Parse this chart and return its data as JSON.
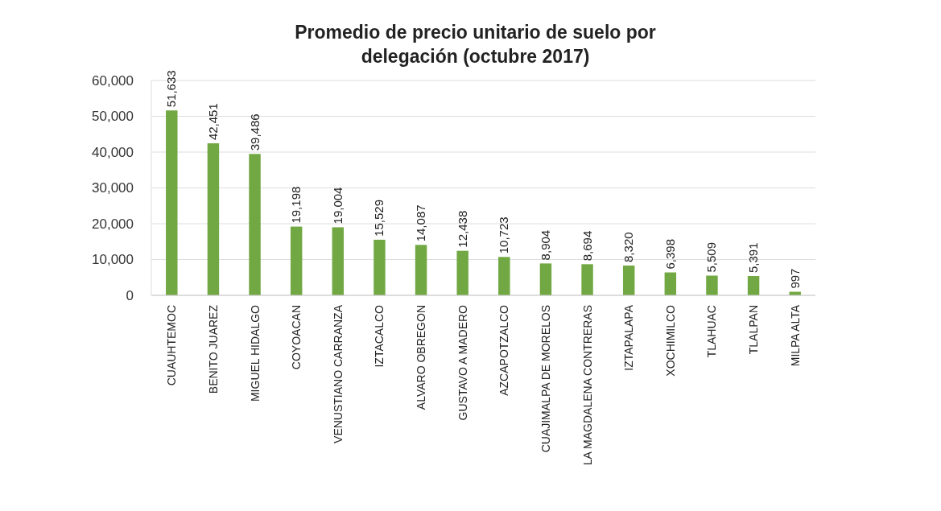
{
  "chart_data": {
    "type": "bar",
    "title": "Promedio de precio unitario de suelo por\ndelegación (octubre 2017)",
    "categories": [
      "CUAUHTEMOC",
      "BENITO JUAREZ",
      "MIGUEL HIDALGO",
      "COYOACAN",
      "VENUSTIANO CARRANZA",
      "IZTACALCO",
      "ALVARO OBREGON",
      "GUSTAVO A MADERO",
      "AZCAPOTZALCO",
      "CUAJIMALPA DE MORELOS",
      "LA MAGDALENA CONTRERAS",
      "IZTAPALAPA",
      "XOCHIMILCO",
      "TLAHUAC",
      "TLALPAN",
      "MILPA ALTA"
    ],
    "values": [
      51633,
      42451,
      39486,
      19198,
      19004,
      15529,
      14087,
      12438,
      10723,
      8904,
      8694,
      8320,
      6398,
      5509,
      5391,
      997
    ],
    "color": "#72a844",
    "ylim": [
      0,
      60000
    ],
    "yticks": [
      0,
      {
        "value": 10000,
        "label": "10,000"
      },
      {
        "value": 20000,
        "label": "20,000"
      },
      {
        "value": 30000,
        "label": "30,000"
      },
      {
        "value": 40000,
        "label": "40,000"
      },
      {
        "value": 50000,
        "label": "50,000"
      },
      {
        "value": 60000,
        "label": "60,000"
      }
    ],
    "value_labels": [
      "51,633",
      "42,451",
      "39,486",
      "19,198",
      "19,004",
      "15,529",
      "14,087",
      "12,438",
      "10,723",
      "8,904",
      "8,694",
      "8,320",
      "6,398",
      "5,509",
      "5,391",
      "997"
    ],
    "grid": "y"
  }
}
